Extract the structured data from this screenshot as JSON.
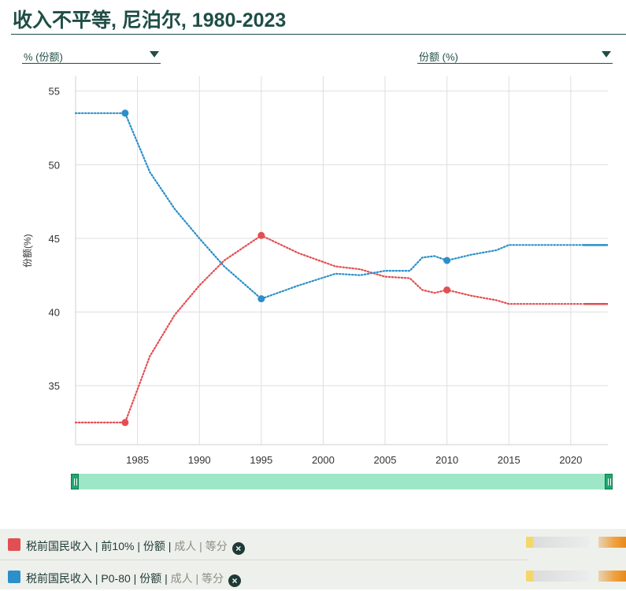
{
  "page": {
    "title": "收入不平等, 尼泊尔, 1980-2023"
  },
  "controls": {
    "unit_dropdown": "% (份额)",
    "measure_dropdown": "份额 (%)"
  },
  "chart_data": {
    "type": "line",
    "title": "收入不平等, 尼泊尔, 1980-2023",
    "ylabel": "份额(%)",
    "xlabel": "",
    "xlim": [
      1980,
      2023
    ],
    "ylim": [
      31,
      56
    ],
    "y_ticks": [
      35,
      40,
      45,
      50,
      55
    ],
    "x_ticks": [
      1985,
      1990,
      1995,
      2000,
      2005,
      2010,
      2015,
      2020
    ],
    "grid": true,
    "series": [
      {
        "name": "税前国民收入 | 前10% | 份额 | 成人 | 等分",
        "color": "#e24e52",
        "x": [
          1980,
          1984,
          1986,
          1988,
          1990,
          1992,
          1995,
          1998,
          2001,
          2003,
          2005,
          2007,
          2008,
          2009,
          2010,
          2012,
          2014,
          2015,
          2018,
          2021,
          2023
        ],
        "y": [
          32.5,
          32.5,
          37.0,
          39.8,
          41.8,
          43.5,
          45.2,
          44.0,
          43.1,
          42.9,
          42.4,
          42.3,
          41.5,
          41.3,
          41.5,
          41.1,
          40.8,
          40.55,
          40.55,
          40.55,
          40.55
        ],
        "markers": [
          1984,
          1995,
          2010
        ]
      },
      {
        "name": "税前国民收入 | P0-80 | 份额 | 成人 | 等分",
        "color": "#2b8fc9",
        "x": [
          1980,
          1984,
          1986,
          1988,
          1990,
          1992,
          1995,
          1998,
          2001,
          2003,
          2005,
          2007,
          2008,
          2009,
          2010,
          2012,
          2014,
          2015,
          2018,
          2021,
          2023
        ],
        "y": [
          53.5,
          53.5,
          49.5,
          47.0,
          45.0,
          43.1,
          40.9,
          41.8,
          42.6,
          42.5,
          42.8,
          42.8,
          43.7,
          43.8,
          43.5,
          43.9,
          44.2,
          44.55,
          44.55,
          44.55,
          44.55
        ],
        "markers": [
          1984,
          1995,
          2010
        ]
      }
    ]
  },
  "legend": {
    "row1": {
      "color": "#e24e52",
      "part1": "税前国民收入",
      "part2": " | 前10% | 份额 | ",
      "muted": "成人 | 等分"
    },
    "row2": {
      "color": "#2b8fc9",
      "part1": "税前国民收入",
      "part2": " | P0-80 | 份额 | ",
      "muted": "成人 | 等分"
    },
    "remove_icon": "×"
  }
}
